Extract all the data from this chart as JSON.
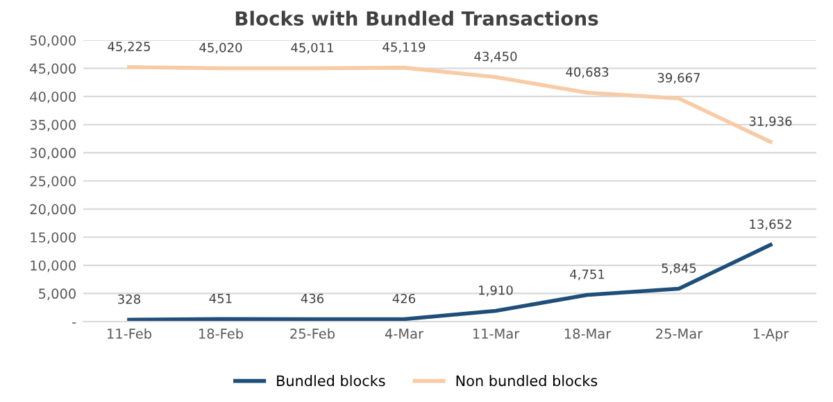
{
  "chart_data": {
    "type": "line",
    "title": "Blocks with Bundled Transactions",
    "categories": [
      "11-Feb",
      "18-Feb",
      "25-Feb",
      "4-Mar",
      "11-Mar",
      "18-Mar",
      "25-Mar",
      "1-Apr"
    ],
    "series": [
      {
        "name": "Bundled blocks",
        "color": "#1f4e79",
        "values": [
          328,
          451,
          436,
          426,
          1910,
          4751,
          5845,
          13652
        ],
        "value_labels": [
          "328",
          "451",
          "436",
          "426",
          "1,910",
          "4,751",
          "5,845",
          "13,652"
        ]
      },
      {
        "name": "Non bundled blocks",
        "color": "#f8cba7",
        "values": [
          45225,
          45020,
          45011,
          45119,
          43450,
          40683,
          39667,
          31936
        ],
        "value_labels": [
          "45,225",
          "45,020",
          "45,011",
          "45,119",
          "43,450",
          "40,683",
          "39,667",
          "31,936"
        ]
      }
    ],
    "ylim": [
      0,
      50000
    ],
    "yticks": [
      {
        "value": 0,
        "label": "-"
      },
      {
        "value": 5000,
        "label": "5,000"
      },
      {
        "value": 10000,
        "label": "10,000"
      },
      {
        "value": 15000,
        "label": "15,000"
      },
      {
        "value": 20000,
        "label": "20,000"
      },
      {
        "value": 25000,
        "label": "25,000"
      },
      {
        "value": 30000,
        "label": "30,000"
      },
      {
        "value": 35000,
        "label": "35,000"
      },
      {
        "value": 40000,
        "label": "40,000"
      },
      {
        "value": 45000,
        "label": "45,000"
      },
      {
        "value": 50000,
        "label": "50,000"
      }
    ],
    "grid": "y",
    "legend": "bottom",
    "marker": "none",
    "line_style": "solid"
  }
}
